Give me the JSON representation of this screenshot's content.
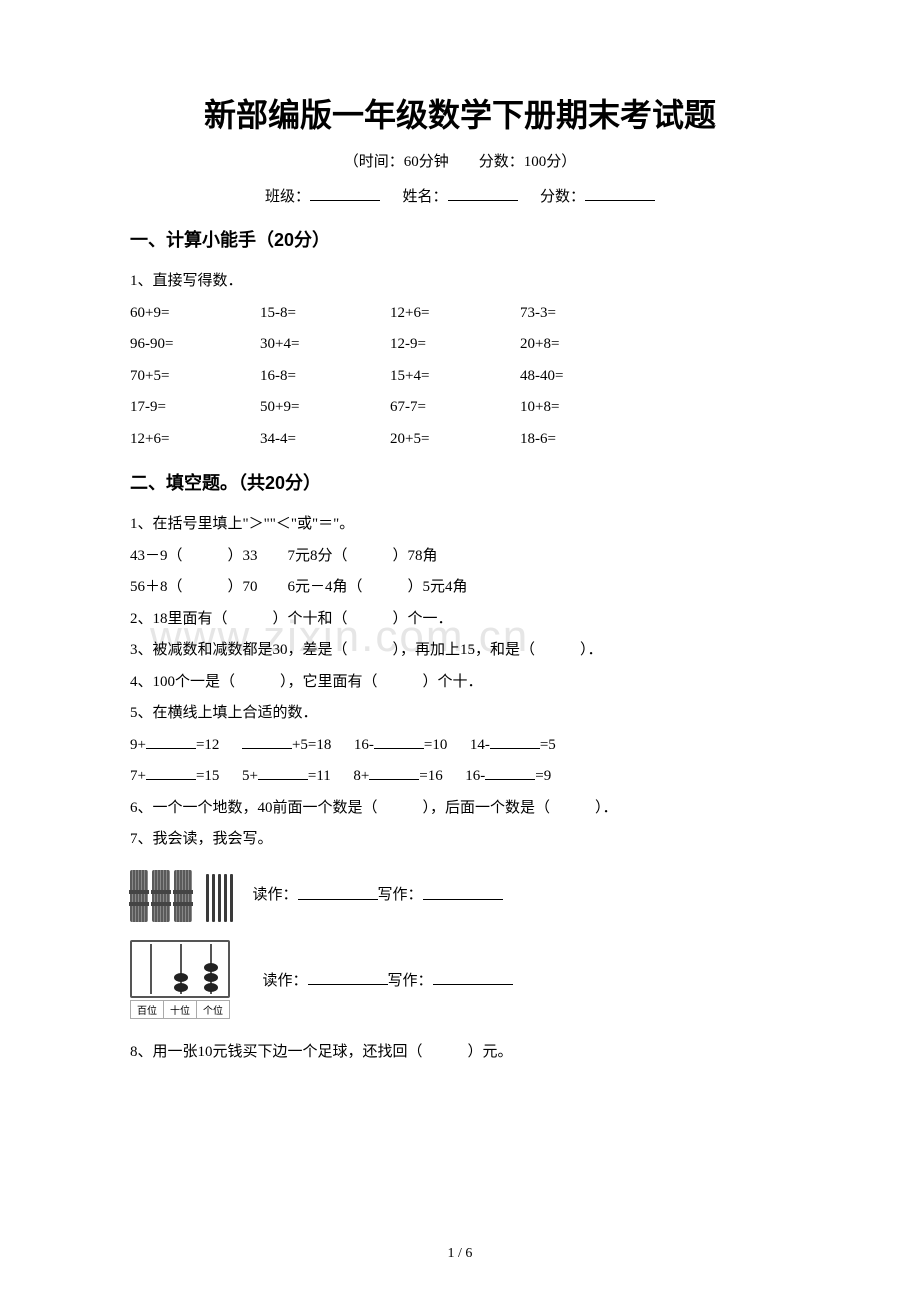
{
  "title": "新部编版一年级数学下册期末考试题",
  "subtitle": "（时间：60分钟　　分数：100分）",
  "info": {
    "class": "班级：",
    "name": "姓名：",
    "score": "分数："
  },
  "section1": {
    "head": "一、计算小能手（20分）",
    "q1": "1、直接写得数．",
    "rows": [
      [
        "60+9=",
        "15-8=",
        "12+6=",
        "73-3="
      ],
      [
        "96-90=",
        "30+4=",
        "12-9=",
        "20+8="
      ],
      [
        "70+5=",
        "16-8=",
        "15+4=",
        "48-40="
      ],
      [
        "17-9=",
        "50+9=",
        "67-7=",
        "10+8="
      ],
      [
        "12+6=",
        "34-4=",
        "20+5=",
        "18-6="
      ]
    ]
  },
  "section2": {
    "head": "二、填空题。（共20分）",
    "q1": "1、在括号里填上\"＞\"\"＜\"或\"＝\"。",
    "q1r1": "43－9（　　　）33　　7元8分（　　　）78角",
    "q1r2": "56＋8（　　　）70　　6元－4角（　　　）5元4角",
    "q2": "2、18里面有（　　　）个十和（　　　）个一．",
    "q3": "3、被减数和减数都是30，差是（　　　），再加上15，和是（　　　）．",
    "q4": "4、100个一是（　　　），它里面有（　　　）个十．",
    "q5": "5、在横线上填上合适的数．",
    "q5r1a": "9+",
    "q5r1b": "=12",
    "q5r1c": "+5=18",
    "q5r1d": "16-",
    "q5r1e": "=10",
    "q5r1f": "14-",
    "q5r1g": "=5",
    "q5r2a": "7+",
    "q5r2b": "=15",
    "q5r2c": "5+",
    "q5r2d": "=11",
    "q5r2e": "8+",
    "q5r2f": "=16",
    "q5r2g": "16-",
    "q5r2h": "=9",
    "q6": "6、一个一个地数，40前面一个数是（　　　），后面一个数是（　　　）．",
    "q7": "7、我会读，我会写。",
    "read": "读作：",
    "write": "写作：",
    "abacus_labels": [
      "百位",
      "十位",
      "个位"
    ],
    "q8": "8、用一张10元钱买下边一个足球，还找回（　　　）元。"
  },
  "watermark": "www.zixin.com.cn",
  "footer": "1 / 6"
}
